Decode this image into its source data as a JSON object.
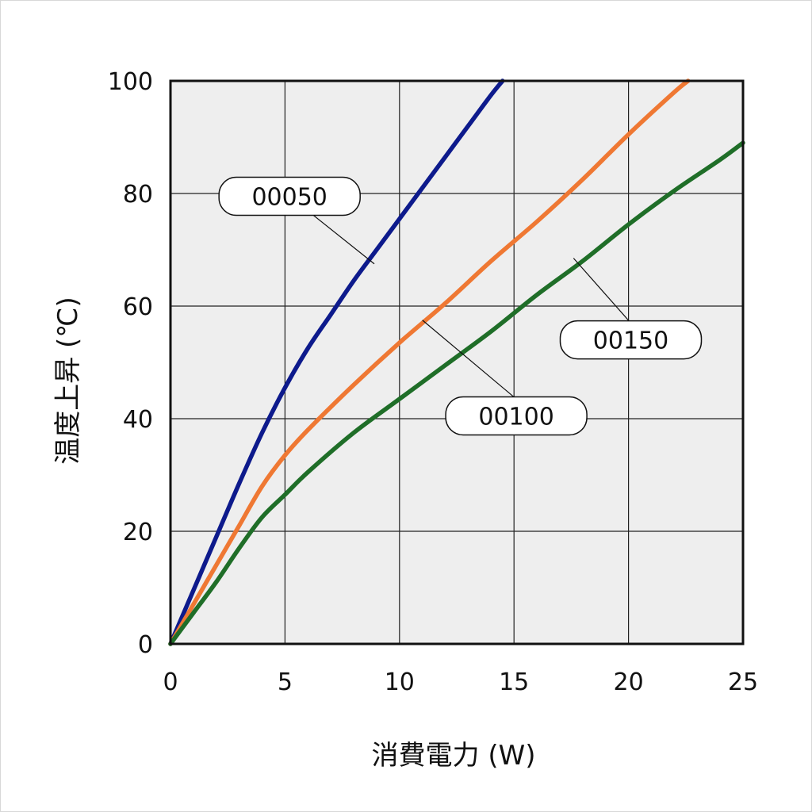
{
  "chart_data": {
    "type": "line",
    "xlabel": "消費電力 (W)",
    "ylabel": "温度上昇 (℃)",
    "xlim": [
      0,
      25
    ],
    "ylim": [
      0,
      100
    ],
    "xticks": [
      0,
      5,
      10,
      15,
      20,
      25
    ],
    "yticks": [
      0,
      20,
      40,
      60,
      80,
      100
    ],
    "grid": true,
    "plot_background": "#eeeeee",
    "series": [
      {
        "name": "00050",
        "color": "#0d1a8c",
        "x": [
          0,
          1,
          2,
          3,
          4,
          5,
          6,
          7,
          8,
          9,
          10,
          11,
          12,
          13,
          14,
          14.5
        ],
        "y": [
          0,
          9.5,
          19,
          28.5,
          37.5,
          45.5,
          52.5,
          58.5,
          64.5,
          70,
          75.5,
          81,
          86.5,
          92,
          97.5,
          100
        ]
      },
      {
        "name": "00100",
        "color": "#ef7833",
        "x": [
          0,
          1,
          2,
          3,
          4,
          5,
          6,
          8,
          10,
          12,
          14,
          16,
          18,
          20,
          22,
          22.6
        ],
        "y": [
          0,
          7,
          14,
          21,
          28,
          33.5,
          38,
          46,
          53.5,
          60.5,
          68,
          75,
          82.5,
          90.5,
          98,
          100
        ]
      },
      {
        "name": "00150",
        "color": "#1f6e28",
        "x": [
          0,
          1,
          2,
          3,
          4,
          5,
          6,
          8,
          10,
          12,
          14,
          16,
          18,
          20,
          22,
          24,
          25
        ],
        "y": [
          0,
          5.5,
          11,
          17,
          22.5,
          26.5,
          30.5,
          37.5,
          43.5,
          49.5,
          55.5,
          62,
          68,
          74.5,
          80.5,
          86,
          89
        ]
      }
    ],
    "annotations": [
      {
        "text": "00050",
        "series": "00050",
        "x": 8.9,
        "y": 67.5,
        "label_x": 5.2,
        "label_y": 79.5,
        "line_from_x": 5.2,
        "line_from_y": 79.5
      },
      {
        "text": "00100",
        "series": "00100",
        "x": 11.0,
        "y": 57.5,
        "label_x": 15.1,
        "label_y": 40.5,
        "line_from_x": 15.1,
        "line_from_y": 43.5
      },
      {
        "text": "00150",
        "series": "00150",
        "x": 17.6,
        "y": 68.5,
        "label_x": 20.1,
        "label_y": 54.0,
        "line_from_x": 20.1,
        "line_from_y": 57.0
      }
    ]
  }
}
